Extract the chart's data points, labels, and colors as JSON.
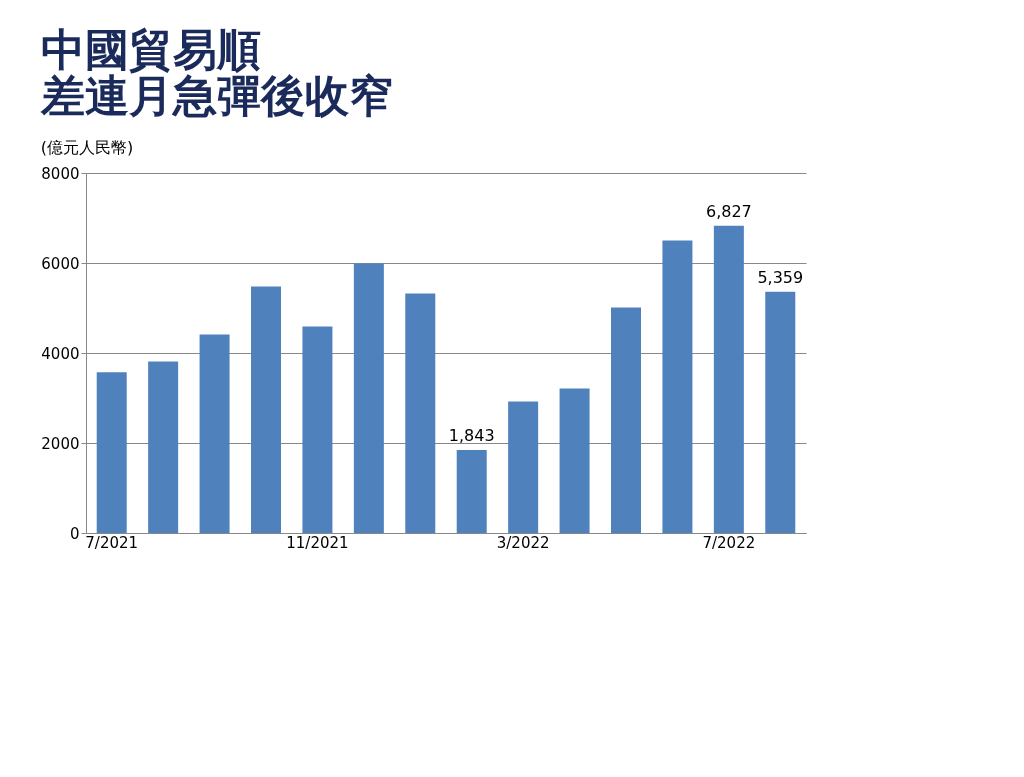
{
  "chart_data": {
    "type": "bar",
    "title": [
      "中國貿易順",
      "差連月急彈後收窄"
    ],
    "ylabel": "(億元人民幣)",
    "categories": [
      "7/2021",
      null,
      null,
      null,
      "11/2021",
      null,
      null,
      null,
      "3/2022",
      null,
      null,
      null,
      "7/2022",
      null
    ],
    "values": [
      3570,
      3810,
      4410,
      5480,
      4590,
      5990,
      5320,
      1843,
      2920,
      3210,
      5010,
      6500,
      6827,
      5359
    ],
    "value_labels": [
      null,
      null,
      null,
      null,
      null,
      null,
      null,
      "1,843",
      null,
      null,
      null,
      null,
      "6,827",
      "5,359"
    ],
    "color": "#4f81bd",
    "ylim": [
      0,
      8000
    ],
    "yticks": [
      0,
      2000,
      4000,
      6000,
      8000
    ],
    "grid": "y"
  }
}
